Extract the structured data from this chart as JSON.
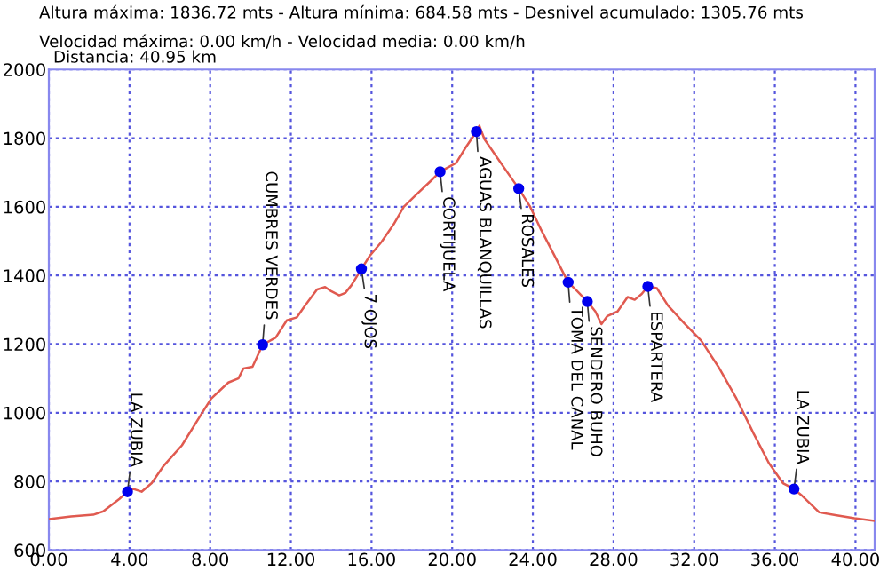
{
  "chart_data": {
    "type": "line",
    "title": "Altura máxima: 1836.72 mts - Altura mínima: 684.58 mts - Desnivel acumulado: 1305.76 mts",
    "subtitle": "Velocidad máxima: 0.00 km/h - Velocidad media: 0.00 km/h",
    "xlim": [
      0,
      40.95
    ],
    "ylim": [
      600,
      2000
    ],
    "xticks": [
      {
        "value": 0,
        "label": "0.00"
      },
      {
        "value": 4,
        "label": "4.00"
      },
      {
        "value": 8,
        "label": "8.00"
      },
      {
        "value": 12,
        "label": "12.00"
      },
      {
        "value": 16,
        "label": "16.00"
      },
      {
        "value": 20,
        "label": "20.00"
      },
      {
        "value": 24,
        "label": "24.00"
      },
      {
        "value": 28,
        "label": "28.00"
      },
      {
        "value": 32,
        "label": "32.00"
      },
      {
        "value": 36,
        "label": "36.00"
      },
      {
        "value": 40,
        "label": "40.00"
      }
    ],
    "yticks": [
      600,
      800,
      1000,
      1200,
      1400,
      1600,
      1800,
      2000
    ],
    "grid": true,
    "line_style": "solid",
    "series": [
      {
        "color": "#e05a50",
        "marker": "none",
        "x": [
          0,
          1.1,
          2.2,
          2.7,
          3.5,
          3.9,
          4.2,
          4.6,
          5.1,
          5.7,
          6.6,
          7.5,
          8.05,
          8.5,
          8.9,
          9.4,
          9.65,
          10.1,
          10.6,
          11.25,
          11.8,
          12.3,
          12.7,
          13.3,
          13.7,
          14.0,
          14.4,
          14.7,
          15.0,
          15.5,
          15.9,
          16.5,
          17.1,
          17.6,
          18.2,
          18.95,
          19.4,
          20.2,
          20.65,
          21.2,
          21.35,
          21.6,
          22.2,
          22.8,
          23.3,
          23.85,
          24.4,
          25.0,
          25.75,
          26.2,
          26.7,
          27.1,
          27.4,
          27.7,
          28.2,
          28.7,
          29.05,
          29.4,
          29.7,
          30.15,
          30.7,
          31.5,
          32.35,
          33.2,
          34.1,
          34.95,
          35.7,
          36.4,
          36.95,
          37.3,
          38.2,
          39.0,
          39.95,
          40.95
        ],
        "values": [
          690,
          698,
          703,
          713,
          749,
          770,
          778,
          770,
          795,
          846,
          905,
          990,
          1041,
          1066,
          1088,
          1100,
          1129,
          1134,
          1198,
          1219,
          1269,
          1278,
          1312,
          1359,
          1366,
          1354,
          1342,
          1349,
          1371,
          1419,
          1456,
          1498,
          1549,
          1600,
          1634,
          1676,
          1702,
          1728,
          1771,
          1819,
          1836,
          1797,
          1746,
          1695,
          1653,
          1602,
          1534,
          1466,
          1380,
          1354,
          1324,
          1295,
          1258,
          1282,
          1295,
          1337,
          1329,
          1346,
          1368,
          1363,
          1312,
          1261,
          1210,
          1134,
          1041,
          939,
          854,
          795,
          778,
          761,
          710,
          702,
          693,
          685
        ]
      },
      {
        "type": "scatter",
        "color": "#0000ee",
        "marker": "circle",
        "x": [
          3.9,
          10.6,
          15.5,
          19.4,
          21.2,
          23.3,
          25.75,
          26.7,
          29.7,
          36.95
        ],
        "values": [
          770,
          1198,
          1419,
          1702,
          1819,
          1653,
          1380,
          1324,
          1368,
          778
        ]
      }
    ],
    "annotations": [
      "Distancia: 40.95 km",
      {
        "text": "LA ZUBIA",
        "x": 3.9,
        "y": 770
      },
      {
        "text": "CUMBRES VERDES",
        "x": 10.6,
        "y": 1198
      },
      {
        "text": "7 OJOS",
        "x": 15.5,
        "y": 1419
      },
      {
        "text": "CORTIJUELA",
        "x": 19.4,
        "y": 1702
      },
      {
        "text": "AGUAS BLANQUILLAS",
        "x": 21.2,
        "y": 1819
      },
      {
        "text": "ROSALES",
        "x": 23.3,
        "y": 1653
      },
      {
        "text": "TOMA DEL CANAL",
        "x": 25.75,
        "y": 1380
      },
      {
        "text": "SENDERO BUHO",
        "x": 26.7,
        "y": 1324
      },
      {
        "text": "ESPARTERA",
        "x": 29.7,
        "y": 1368
      },
      {
        "text": "LA ZUBIA",
        "x": 36.95,
        "y": 778
      }
    ]
  }
}
